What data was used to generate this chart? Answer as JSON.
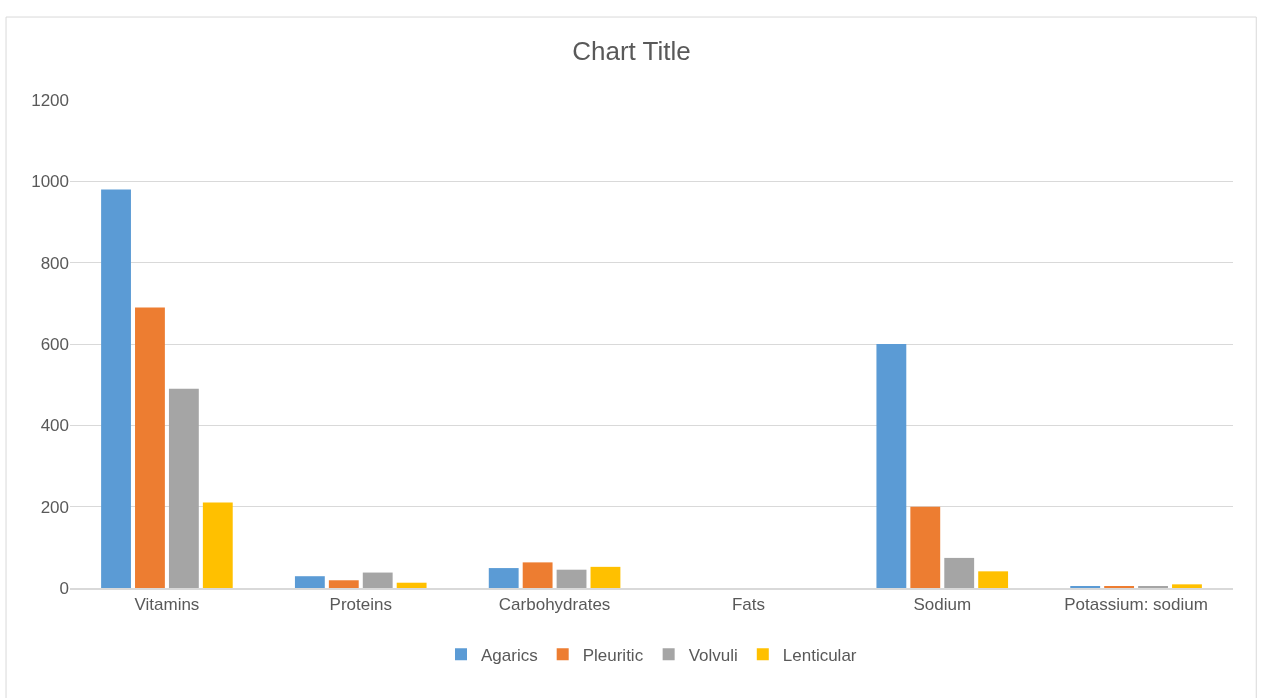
{
  "chart_data": {
    "type": "bar",
    "title": "Chart Title",
    "categories": [
      "Vitamins",
      "Proteins",
      "Carbohydrates",
      "Fats",
      "Sodium",
      "Potassium: sodium"
    ],
    "series": [
      {
        "name": "Agarics",
        "color": "#5b9bd5",
        "values": [
          980,
          29,
          49,
          0,
          600,
          4
        ]
      },
      {
        "name": "Pleuritic",
        "color": "#ed7d31",
        "values": [
          690,
          19,
          63,
          0,
          200,
          4
        ]
      },
      {
        "name": "Volvuli",
        "color": "#a5a5a5",
        "values": [
          490,
          38,
          45,
          0,
          74,
          4
        ]
      },
      {
        "name": "Lenticular",
        "color": "#ffc000",
        "values": [
          210,
          13,
          52,
          0,
          41,
          9
        ]
      }
    ],
    "ylim": [
      0,
      1200
    ],
    "yticks": [
      0,
      200,
      400,
      600,
      800,
      1000,
      1200
    ],
    "grid": "y",
    "legend": "bottom"
  }
}
